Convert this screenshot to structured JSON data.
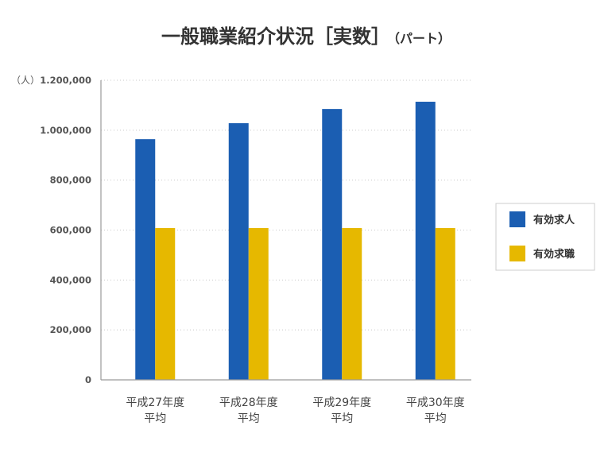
{
  "chart_data": {
    "type": "bar",
    "title": "一般職業紹介状況［実数］",
    "title_suffix": "（パート）",
    "ylabel": "（人）",
    "categories": [
      [
        "平成27年度",
        "平均"
      ],
      [
        "平成28年度",
        "平均"
      ],
      [
        "平成29年度",
        "平均"
      ],
      [
        "平成30年度",
        "平均"
      ]
    ],
    "series": [
      {
        "name": "有効求人",
        "color": "#1b5eb2",
        "values": [
          964000,
          1028000,
          1085000,
          1114000
        ]
      },
      {
        "name": "有効求職",
        "color": "#e6b800",
        "values": [
          608000,
          608000,
          608000,
          608000
        ]
      }
    ],
    "ylim": [
      0,
      1200000
    ],
    "yticks": [
      0,
      200000,
      400000,
      600000,
      800000,
      1000000,
      1200000
    ],
    "ytick_labels": [
      "0",
      "200,000",
      "400,000",
      "600,000",
      "800,000",
      "1.000,000",
      "1.200,000"
    ],
    "grid": true,
    "grid_style": "dotted",
    "legend": {
      "position": "right"
    }
  }
}
